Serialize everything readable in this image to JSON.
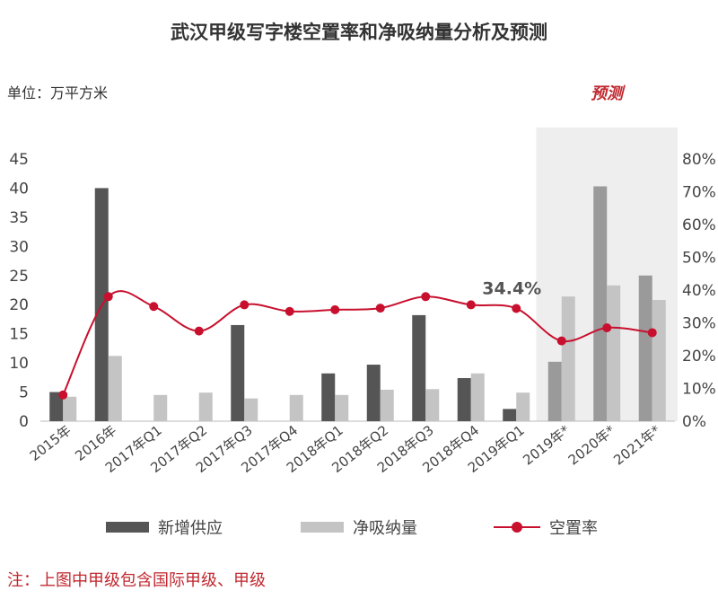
{
  "title": "武汉甲级写字楼空置率和净吸纳量分析及预测",
  "unit_label": "单位：万平方米",
  "forecast_label": "预测",
  "note": "注：上图中甲级包含国际甲级、甲级",
  "colors": {
    "supply": "#555555",
    "absorption": "#c4c4c4",
    "supply_forecast": "#9a9a9a",
    "vacancy": "#c8102e",
    "forecast_bg": "#eeeeee"
  },
  "chart_data": {
    "type": "bar",
    "categories": [
      "2015年",
      "2016年",
      "2017年Q1",
      "2017年Q2",
      "2017年Q3",
      "2017年Q4",
      "2018年Q1",
      "2018年Q2",
      "2018年Q3",
      "2018年Q4",
      "2019年Q1",
      "2019年*",
      "2020年*",
      "2021年*"
    ],
    "series": [
      {
        "name": "新增供应",
        "kind": "bar",
        "axis": "left",
        "values": [
          5,
          40,
          0,
          0,
          16.5,
          0,
          8.2,
          9.7,
          18.2,
          7.4,
          2.1,
          10.2,
          40.3,
          25
        ]
      },
      {
        "name": "净吸纳量",
        "kind": "bar",
        "axis": "left",
        "values": [
          4.2,
          11.2,
          4.5,
          4.9,
          3.9,
          4.5,
          4.5,
          5.4,
          5.5,
          8.2,
          4.9,
          21.4,
          23.3,
          20.8
        ]
      },
      {
        "name": "空置率",
        "kind": "line",
        "axis": "right",
        "unit": "%",
        "values": [
          8,
          38,
          35,
          27.5,
          35.5,
          33.5,
          34,
          34.5,
          38,
          35.5,
          34.4,
          24.5,
          28.5,
          27
        ]
      }
    ],
    "forecast_from_index": 11,
    "annotation": {
      "index": 10,
      "text": "34.4%"
    },
    "ylim_left": [
      0,
      45
    ],
    "yticks_left": [
      "0",
      "5",
      "10",
      "15",
      "20",
      "25",
      "30",
      "35",
      "40",
      "45"
    ],
    "ylim_right": [
      0,
      80
    ],
    "yticks_right": [
      "0%",
      "10%",
      "20%",
      "30%",
      "40%",
      "50%",
      "60%",
      "70%",
      "80%"
    ],
    "grid": false,
    "legend_position": "bottom"
  }
}
